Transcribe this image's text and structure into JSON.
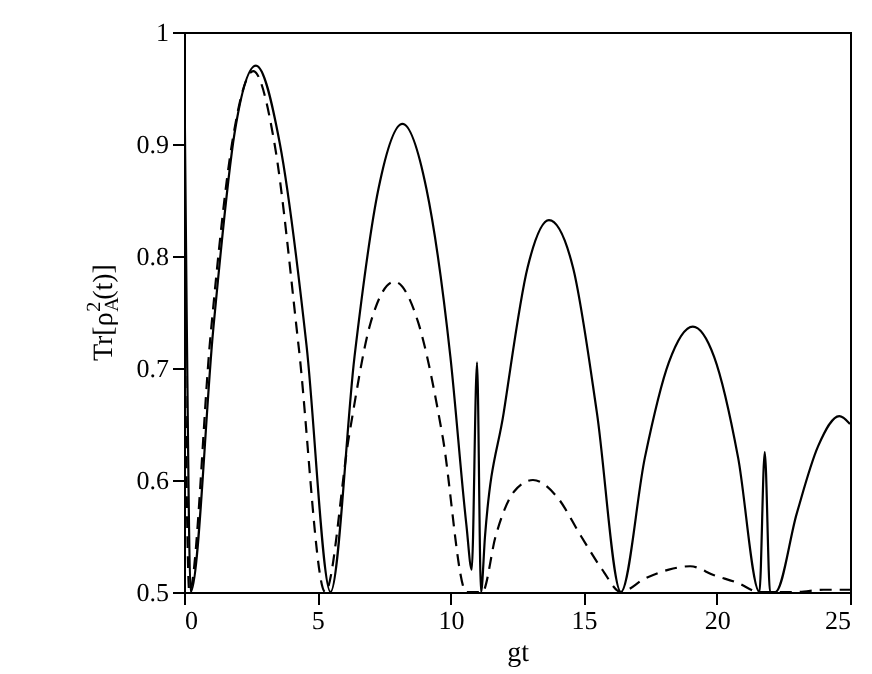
{
  "chart_data": {
    "type": "line",
    "xlabel": "gt",
    "ylabel": "Tr[ρ$^{2}$$_{A}$(t)]",
    "series": [
      {
        "color": "#000000",
        "line_style": "solid",
        "x": [
          0,
          0.1,
          0.25,
          1.1,
          1.9,
          2.7,
          3.6,
          4.6,
          5.5,
          6.4,
          7.3,
          8.2,
          9.1,
          10.0,
          10.6,
          10.8,
          11.0,
          11.15,
          11.3,
          12.0,
          12.9,
          13.7,
          14.6,
          15.5,
          16.4,
          17.3,
          18.2,
          19.1,
          19.9,
          20.8,
          21.6,
          21.8,
          22.0,
          22.2,
          23.0,
          23.8,
          24.6,
          25.0
        ],
        "values": [
          1.0,
          0.75,
          0.5,
          0.735,
          0.91,
          0.97,
          0.9,
          0.72,
          0.5,
          0.71,
          0.86,
          0.918,
          0.86,
          0.71,
          0.56,
          0.52,
          0.705,
          0.5,
          0.55,
          0.66,
          0.79,
          0.832,
          0.79,
          0.66,
          0.5,
          0.62,
          0.705,
          0.737,
          0.71,
          0.62,
          0.5,
          0.625,
          0.5,
          0.5,
          0.57,
          0.63,
          0.657,
          0.65
        ]
      },
      {
        "color": "#000000",
        "line_style": "dashed",
        "x": [
          0,
          0.2,
          1.0,
          1.8,
          2.6,
          3.4,
          4.3,
          5.3,
          6.2,
          7.0,
          7.9,
          8.8,
          9.7,
          10.6,
          11.2,
          11.7,
          12.4,
          13.1,
          14.0,
          14.9,
          15.7,
          16.4,
          17.3,
          18.2,
          19.0,
          19.9,
          20.8,
          21.6,
          23.0,
          24.0,
          25.0
        ],
        "values": [
          0.8,
          0.5,
          0.73,
          0.9,
          0.965,
          0.9,
          0.72,
          0.5,
          0.64,
          0.74,
          0.777,
          0.74,
          0.64,
          0.5,
          0.5,
          0.55,
          0.59,
          0.6,
          0.585,
          0.55,
          0.52,
          0.5,
          0.512,
          0.52,
          0.523,
          0.515,
          0.508,
          0.5,
          0.5,
          0.502,
          0.502
        ]
      }
    ],
    "xlim": [
      0,
      25
    ],
    "xticks": [
      0,
      5,
      10,
      15,
      20,
      25
    ],
    "ylim": [
      0.5,
      1
    ],
    "yticks": [
      0.5,
      0.6,
      0.7,
      0.8,
      0.9,
      1
    ],
    "grid": false,
    "marker": "none"
  }
}
